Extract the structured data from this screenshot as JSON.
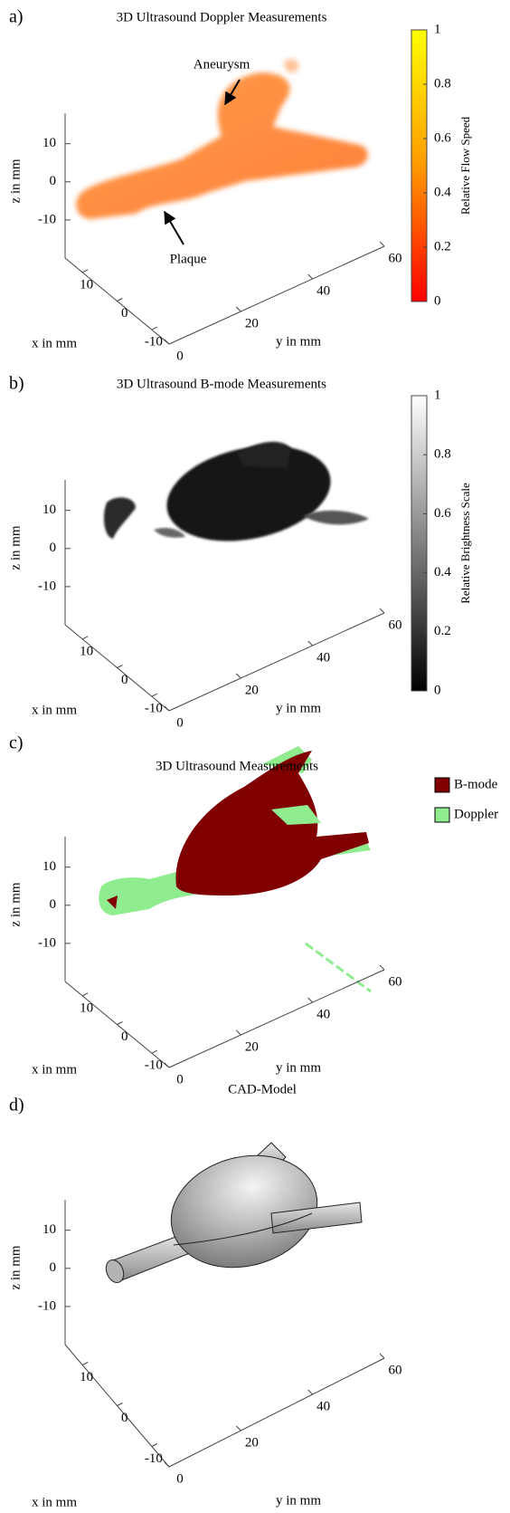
{
  "chart_data": [
    {
      "type": "volume",
      "panel_label": "a)",
      "title": "3D Ultrasound Doppler Measurements",
      "xlabel": "x in mm",
      "ylabel": "y in mm",
      "zlabel": "z in mm",
      "xlim": [
        -15,
        15
      ],
      "ylim": [
        0,
        60
      ],
      "zlim": [
        -20,
        18
      ],
      "xticks": [
        -10,
        0,
        10
      ],
      "yticks": [
        0,
        20,
        40,
        60
      ],
      "zticks": [
        -10,
        0,
        10
      ],
      "colorbar": {
        "label": "Relative Flow Speed",
        "clim": [
          0,
          1
        ],
        "ticks": [
          0,
          0.2,
          0.4,
          0.6,
          0.8,
          1
        ],
        "colors": [
          "#ff0000",
          "#ff9a00",
          "#ffff00"
        ]
      },
      "annotations": [
        {
          "text": "Aneurysm"
        },
        {
          "text": "Plaque"
        }
      ]
    },
    {
      "type": "volume",
      "panel_label": "b)",
      "title": "3D Ultrasound B-mode Measurements",
      "xlabel": "x in mm",
      "ylabel": "y in mm",
      "zlabel": "z in mm",
      "xlim": [
        -15,
        15
      ],
      "ylim": [
        0,
        60
      ],
      "zlim": [
        -20,
        18
      ],
      "xticks": [
        -10,
        0,
        10
      ],
      "yticks": [
        0,
        20,
        40,
        60
      ],
      "zticks": [
        -10,
        0,
        10
      ],
      "colorbar": {
        "label": "Relative Brightness Scale",
        "clim": [
          0,
          1
        ],
        "ticks": [
          0,
          0.2,
          0.4,
          0.6,
          0.8,
          1
        ],
        "colors": [
          "#000000",
          "#808080",
          "#ffffff"
        ]
      }
    },
    {
      "type": "volume",
      "panel_label": "c)",
      "title": "3D Ultrasound Measurements",
      "xlabel": "x in mm",
      "ylabel": "y in mm",
      "zlabel": "z in mm",
      "xlim": [
        -15,
        15
      ],
      "ylim": [
        0,
        60
      ],
      "zlim": [
        -20,
        18
      ],
      "xticks": [
        -10,
        0,
        10
      ],
      "yticks": [
        0,
        20,
        40,
        60
      ],
      "zticks": [
        -10,
        0,
        10
      ],
      "legend": [
        {
          "name": "B-mode",
          "color": "#800000"
        },
        {
          "name": "Doppler",
          "color": "#8fec8f"
        }
      ]
    },
    {
      "type": "surface",
      "panel_label": "d)",
      "title": "CAD-Model",
      "xlabel": "x in mm",
      "ylabel": "y in mm",
      "zlabel": "z in mm",
      "xlim": [
        -15,
        15
      ],
      "ylim": [
        0,
        60
      ],
      "zlim": [
        -20,
        18
      ],
      "xticks": [
        -10,
        0,
        10
      ],
      "yticks": [
        0,
        20,
        40,
        60
      ],
      "zticks": [
        -10,
        0,
        10
      ],
      "color": "#b4b4b4"
    }
  ]
}
